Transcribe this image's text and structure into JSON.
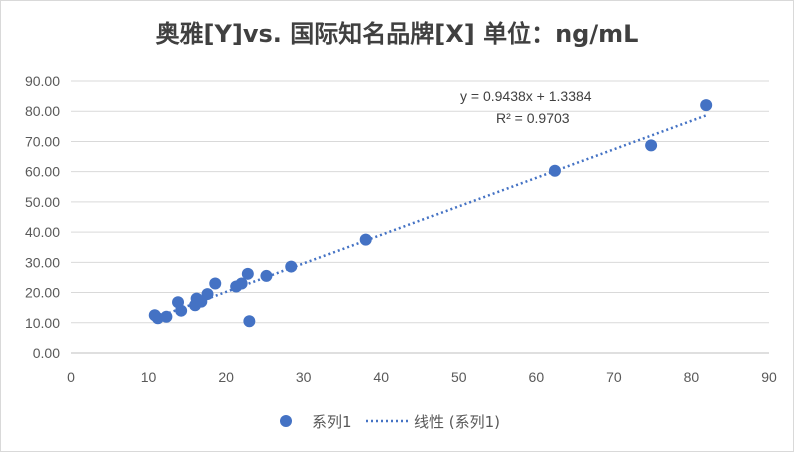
{
  "chart_data": {
    "type": "scatter",
    "title": "奥雅[Y]vs. 国际知名品牌[X]    单位：ng/mL",
    "xlim": [
      0,
      90
    ],
    "ylim": [
      0,
      90
    ],
    "x_ticks": [
      "0",
      "10",
      "20",
      "30",
      "40",
      "50",
      "60",
      "70",
      "80",
      "90"
    ],
    "y_ticks": [
      "0.00",
      "10.00",
      "20.00",
      "30.00",
      "40.00",
      "50.00",
      "60.00",
      "70.00",
      "80.00",
      "90.00"
    ],
    "x_tick_values": [
      0,
      10,
      20,
      30,
      40,
      50,
      60,
      70,
      80,
      90
    ],
    "y_tick_values": [
      0,
      10,
      20,
      30,
      40,
      50,
      60,
      70,
      80,
      90
    ],
    "series": [
      {
        "name": "系列1",
        "color": "#4472c4",
        "points": [
          [
            10.8,
            12.5
          ],
          [
            11.2,
            11.5
          ],
          [
            12.3,
            12.0
          ],
          [
            13.8,
            16.8
          ],
          [
            14.2,
            14.0
          ],
          [
            16.0,
            15.8
          ],
          [
            16.2,
            18.0
          ],
          [
            16.8,
            17.0
          ],
          [
            17.6,
            19.5
          ],
          [
            18.6,
            23.0
          ],
          [
            21.3,
            22.0
          ],
          [
            22.0,
            23.0
          ],
          [
            22.8,
            26.2
          ],
          [
            23.0,
            10.5
          ],
          [
            25.2,
            25.5
          ],
          [
            28.4,
            28.6
          ],
          [
            38.0,
            37.5
          ],
          [
            62.4,
            60.3
          ],
          [
            74.8,
            68.7
          ],
          [
            81.9,
            82.0
          ]
        ]
      }
    ],
    "trendline": {
      "name": "线性 (系列1)",
      "type": "linear",
      "slope": 0.9438,
      "intercept": 1.3384,
      "x_range": [
        10.8,
        81.9
      ],
      "equation": "y = 0.9438x + 1.3384",
      "r_squared": "R² = 0.9703",
      "color": "#4472c4"
    },
    "legend_position": "bottom",
    "grid": "horizontal"
  }
}
